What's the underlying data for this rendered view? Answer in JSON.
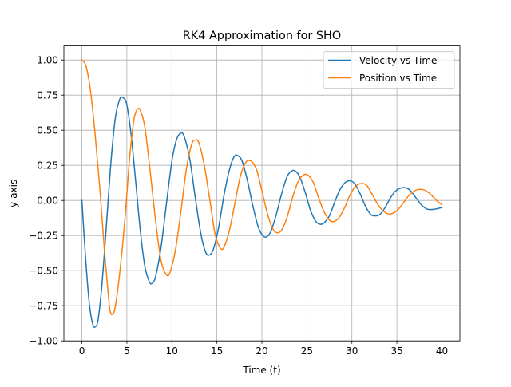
{
  "chart_data": {
    "type": "line",
    "title": "RK4 Approximation for SHO",
    "xlabel": "Time (t)",
    "ylabel": "y-axis",
    "xlim": [
      -2,
      42
    ],
    "ylim": [
      -1.0,
      1.1
    ],
    "xticks": [
      0,
      5,
      10,
      15,
      20,
      25,
      30,
      35,
      40
    ],
    "xtick_labels": [
      "0",
      "5",
      "10",
      "15",
      "20",
      "25",
      "30",
      "35",
      "40"
    ],
    "yticks": [
      -1.0,
      -0.75,
      -0.5,
      -0.25,
      0.0,
      0.25,
      0.5,
      0.75,
      1.0
    ],
    "ytick_labels": [
      "−1.00",
      "−0.75",
      "−0.50",
      "−0.25",
      "0.00",
      "0.25",
      "0.50",
      "0.75",
      "1.00"
    ],
    "grid": true,
    "legend_position": "top-right",
    "series": [
      {
        "name": "Velocity vs Time",
        "color": "#1f77b4",
        "points": [
          [
            0,
            0
          ],
          [
            0.4,
            -0.4
          ],
          [
            0.8,
            -0.72
          ],
          [
            1.2,
            -0.88
          ],
          [
            1.5,
            -0.9
          ],
          [
            1.8,
            -0.85
          ],
          [
            2.2,
            -0.62
          ],
          [
            2.7,
            -0.2
          ],
          [
            3.2,
            0.25
          ],
          [
            3.7,
            0.58
          ],
          [
            4.2,
            0.72
          ],
          [
            4.6,
            0.73
          ],
          [
            5.0,
            0.68
          ],
          [
            5.5,
            0.45
          ],
          [
            6.0,
            0.12
          ],
          [
            6.5,
            -0.22
          ],
          [
            7.0,
            -0.47
          ],
          [
            7.5,
            -0.58
          ],
          [
            7.8,
            -0.59
          ],
          [
            8.2,
            -0.54
          ],
          [
            8.8,
            -0.33
          ],
          [
            9.4,
            -0.02
          ],
          [
            10.0,
            0.28
          ],
          [
            10.5,
            0.43
          ],
          [
            11.0,
            0.48
          ],
          [
            11.4,
            0.45
          ],
          [
            12.0,
            0.29
          ],
          [
            12.6,
            0.02
          ],
          [
            13.2,
            -0.23
          ],
          [
            13.7,
            -0.36
          ],
          [
            14.1,
            -0.39
          ],
          [
            14.6,
            -0.35
          ],
          [
            15.2,
            -0.19
          ],
          [
            15.8,
            0.04
          ],
          [
            16.4,
            0.22
          ],
          [
            16.9,
            0.31
          ],
          [
            17.3,
            0.32
          ],
          [
            17.8,
            0.28
          ],
          [
            18.4,
            0.14
          ],
          [
            19.0,
            -0.04
          ],
          [
            19.6,
            -0.19
          ],
          [
            20.1,
            -0.25
          ],
          [
            20.5,
            -0.26
          ],
          [
            21.0,
            -0.22
          ],
          [
            21.6,
            -0.1
          ],
          [
            22.2,
            0.05
          ],
          [
            22.8,
            0.17
          ],
          [
            23.3,
            0.21
          ],
          [
            23.7,
            0.21
          ],
          [
            24.2,
            0.17
          ],
          [
            24.8,
            0.06
          ],
          [
            25.4,
            -0.07
          ],
          [
            26.0,
            -0.15
          ],
          [
            26.5,
            -0.17
          ],
          [
            26.9,
            -0.16
          ],
          [
            27.5,
            -0.11
          ],
          [
            28.1,
            -0.01
          ],
          [
            28.7,
            0.08
          ],
          [
            29.3,
            0.13
          ],
          [
            29.8,
            0.14
          ],
          [
            30.3,
            0.12
          ],
          [
            30.9,
            0.05
          ],
          [
            31.5,
            -0.04
          ],
          [
            32.1,
            -0.1
          ],
          [
            32.6,
            -0.11
          ],
          [
            33.1,
            -0.1
          ],
          [
            33.7,
            -0.05
          ],
          [
            34.3,
            0.02
          ],
          [
            34.9,
            0.07
          ],
          [
            35.5,
            0.09
          ],
          [
            36.0,
            0.09
          ],
          [
            36.5,
            0.07
          ],
          [
            37.1,
            0.02
          ],
          [
            37.7,
            -0.03
          ],
          [
            38.3,
            -0.06
          ],
          [
            38.8,
            -0.065
          ],
          [
            39.4,
            -0.06
          ],
          [
            40.0,
            -0.05
          ]
        ]
      },
      {
        "name": "Position vs Time",
        "color": "#ff7f0e",
        "points": [
          [
            0,
            1.0
          ],
          [
            0.3,
            0.98
          ],
          [
            0.6,
            0.92
          ],
          [
            1.0,
            0.76
          ],
          [
            1.5,
            0.45
          ],
          [
            2.0,
            0.08
          ],
          [
            2.5,
            -0.35
          ],
          [
            3.0,
            -0.72
          ],
          [
            3.2,
            -0.8
          ],
          [
            3.4,
            -0.81
          ],
          [
            3.7,
            -0.76
          ],
          [
            4.2,
            -0.52
          ],
          [
            4.8,
            -0.12
          ],
          [
            5.3,
            0.3
          ],
          [
            5.8,
            0.58
          ],
          [
            6.2,
            0.65
          ],
          [
            6.5,
            0.64
          ],
          [
            7.0,
            0.52
          ],
          [
            7.6,
            0.2
          ],
          [
            8.2,
            -0.15
          ],
          [
            8.8,
            -0.43
          ],
          [
            9.4,
            -0.53
          ],
          [
            9.8,
            -0.51
          ],
          [
            10.4,
            -0.35
          ],
          [
            11.0,
            -0.08
          ],
          [
            11.6,
            0.22
          ],
          [
            12.2,
            0.4
          ],
          [
            12.6,
            0.43
          ],
          [
            13.0,
            0.41
          ],
          [
            13.6,
            0.25
          ],
          [
            14.2,
            0.01
          ],
          [
            14.8,
            -0.24
          ],
          [
            15.4,
            -0.34
          ],
          [
            15.8,
            -0.33
          ],
          [
            16.4,
            -0.21
          ],
          [
            17.0,
            -0.02
          ],
          [
            17.6,
            0.17
          ],
          [
            18.2,
            0.27
          ],
          [
            18.8,
            0.28
          ],
          [
            19.4,
            0.22
          ],
          [
            20.0,
            0.07
          ],
          [
            20.6,
            -0.09
          ],
          [
            21.2,
            -0.2
          ],
          [
            21.7,
            -0.23
          ],
          [
            22.2,
            -0.21
          ],
          [
            22.8,
            -0.12
          ],
          [
            23.4,
            0.02
          ],
          [
            24.0,
            0.13
          ],
          [
            24.6,
            0.18
          ],
          [
            25.1,
            0.18
          ],
          [
            25.7,
            0.13
          ],
          [
            26.3,
            0.02
          ],
          [
            26.9,
            -0.08
          ],
          [
            27.5,
            -0.14
          ],
          [
            28.0,
            -0.15
          ],
          [
            28.6,
            -0.12
          ],
          [
            29.2,
            -0.05
          ],
          [
            29.8,
            0.04
          ],
          [
            30.4,
            0.1
          ],
          [
            31.0,
            0.12
          ],
          [
            31.6,
            0.11
          ],
          [
            32.2,
            0.05
          ],
          [
            32.8,
            -0.02
          ],
          [
            33.4,
            -0.07
          ],
          [
            34.0,
            -0.095
          ],
          [
            34.6,
            -0.09
          ],
          [
            35.2,
            -0.06
          ],
          [
            35.8,
            -0.01
          ],
          [
            36.4,
            0.04
          ],
          [
            37.0,
            0.07
          ],
          [
            37.6,
            0.08
          ],
          [
            38.2,
            0.07
          ],
          [
            38.8,
            0.04
          ],
          [
            39.4,
            0.0
          ],
          [
            40.0,
            -0.03
          ]
        ]
      }
    ]
  }
}
